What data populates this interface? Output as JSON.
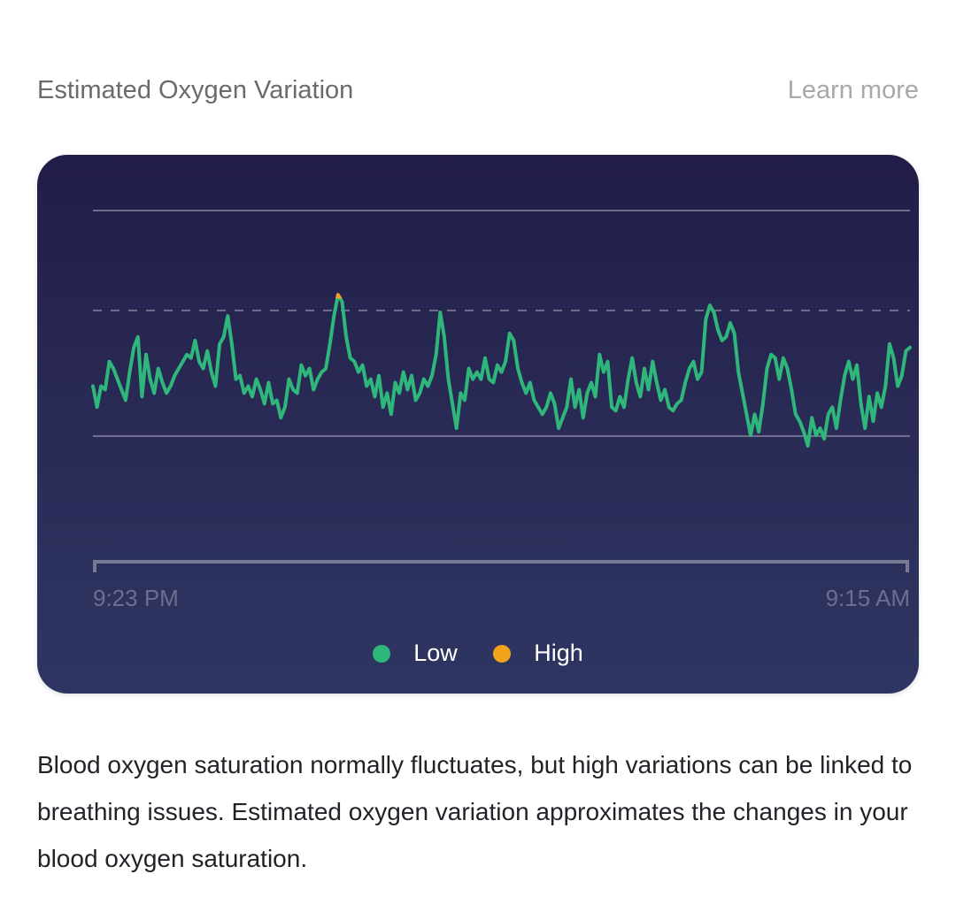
{
  "header": {
    "title": "Estimated Oxygen Variation",
    "learn_more": "Learn more"
  },
  "chart": {
    "x_start_label": "9:23 PM",
    "x_end_label": "9:15 AM",
    "legend": [
      {
        "label": "Low",
        "color": "#2fb67a"
      },
      {
        "label": "High",
        "color": "#f2a31b"
      }
    ]
  },
  "chart_data": {
    "type": "line",
    "title": "",
    "xlabel": "",
    "ylabel": "",
    "xlim": [
      0,
      100
    ],
    "ylim": [
      0,
      100
    ],
    "x_tick_labels": [
      "9:23 PM",
      "9:15 AM"
    ],
    "grid": "horizontal reference lines at 0, 50, 100; dashed high threshold at 75",
    "high_threshold": 75,
    "legend_position": "bottom-center",
    "series": [
      {
        "name": "Low",
        "color": "#2fb67a",
        "x": [
          0,
          0.5,
          1,
          1.5,
          2,
          2.5,
          3,
          3.5,
          4,
          4.5,
          5,
          5.5,
          6,
          6.5,
          7,
          7.5,
          8,
          8.5,
          9,
          9.5,
          10,
          10.5,
          11,
          11.5,
          12,
          12.5,
          13,
          13.5,
          14,
          14.5,
          15,
          15.5,
          16,
          16.5,
          17,
          17.5,
          18,
          18.5,
          19,
          19.5,
          20,
          20.5,
          21,
          21.5,
          22,
          22.5,
          23,
          23.5,
          24,
          24.5,
          25,
          25.5,
          26,
          26.5,
          27,
          27.5,
          28,
          28.5,
          29,
          29.5,
          30,
          30.5,
          31,
          31.5,
          32,
          32.5,
          33,
          33.5,
          34,
          34.5,
          35,
          35.5,
          36,
          36.5,
          37,
          37.5,
          38,
          38.5,
          39,
          39.5,
          40,
          40.5,
          41,
          41.5,
          42,
          42.5,
          43,
          43.5,
          44,
          44.5,
          45,
          45.5,
          46,
          46.5,
          47,
          47.5,
          48,
          48.5,
          49,
          49.5,
          50,
          50.5,
          51,
          51.5,
          52,
          52.5,
          53,
          53.5,
          54,
          54.5,
          55,
          55.5,
          56,
          56.5,
          57,
          57.5,
          58,
          58.5,
          59,
          59.5,
          60,
          60.5,
          61,
          61.5,
          62,
          62.5,
          63,
          63.5,
          64,
          64.5,
          65,
          65.5,
          66,
          66.5,
          67,
          67.5,
          68,
          68.5,
          69,
          69.5,
          70,
          70.5,
          71,
          71.5,
          72,
          72.5,
          73,
          73.5,
          74,
          74.5,
          75,
          75.5,
          76,
          76.5,
          77,
          77.5,
          78,
          78.5,
          79,
          79.5,
          80,
          80.5,
          81,
          81.5,
          82,
          82.5,
          83,
          83.5,
          84,
          84.5,
          85,
          85.5,
          86,
          86.5,
          87,
          87.5,
          88,
          88.5,
          89,
          89.5,
          90,
          90.5,
          91,
          91.5,
          92,
          92.5,
          93,
          93.5,
          94,
          94.5,
          95,
          95.5,
          96,
          96.5,
          97,
          97.5,
          98,
          98.5,
          99,
          99.5,
          100
        ],
        "y": [
          50,
          44,
          50,
          49,
          57,
          55,
          52,
          49,
          46,
          54,
          61,
          64,
          47,
          59,
          52,
          48,
          55,
          51,
          48,
          50,
          53,
          55,
          57,
          59,
          58,
          63,
          57,
          55,
          60,
          54,
          50,
          62,
          64,
          70,
          62,
          52,
          53,
          48,
          50,
          47,
          52,
          49,
          45,
          51,
          45,
          46,
          41,
          44,
          52,
          49,
          48,
          56,
          53,
          55,
          49,
          52,
          54,
          55,
          62,
          70,
          76,
          74,
          64,
          58,
          57,
          54,
          56,
          50,
          52,
          47,
          53,
          44,
          48,
          42,
          51,
          48,
          54,
          49,
          53,
          46,
          48,
          52,
          50,
          53,
          59,
          71,
          64,
          52,
          45,
          38,
          48,
          46,
          55,
          52,
          54,
          52,
          58,
          52,
          51,
          56,
          54,
          57,
          65,
          63,
          55,
          51,
          48,
          51,
          46,
          44,
          42,
          44,
          48,
          45,
          38,
          41,
          44,
          52,
          44,
          49,
          41,
          48,
          51,
          47,
          59,
          54,
          57,
          44,
          43,
          47,
          44,
          52,
          58,
          51,
          47,
          55,
          49,
          57,
          51,
          46,
          49,
          44,
          43,
          45,
          46,
          51,
          55,
          57,
          52,
          54,
          69,
          73,
          71,
          66,
          63,
          64,
          68,
          65,
          54,
          48,
          42,
          36,
          42,
          37,
          45,
          55,
          59,
          58,
          52,
          58,
          55,
          49,
          42,
          40,
          37,
          33,
          41,
          36,
          38,
          35,
          42,
          44,
          38,
          46,
          53,
          57,
          52,
          56,
          45,
          38,
          47,
          40,
          48,
          44,
          50,
          62,
          58,
          50,
          53,
          60,
          61
        ]
      }
    ]
  },
  "description": "Blood oxygen saturation normally fluctuates, but high variations can be linked to breathing issues. Estimated oxygen variation approximates the changes in your blood oxygen saturation."
}
